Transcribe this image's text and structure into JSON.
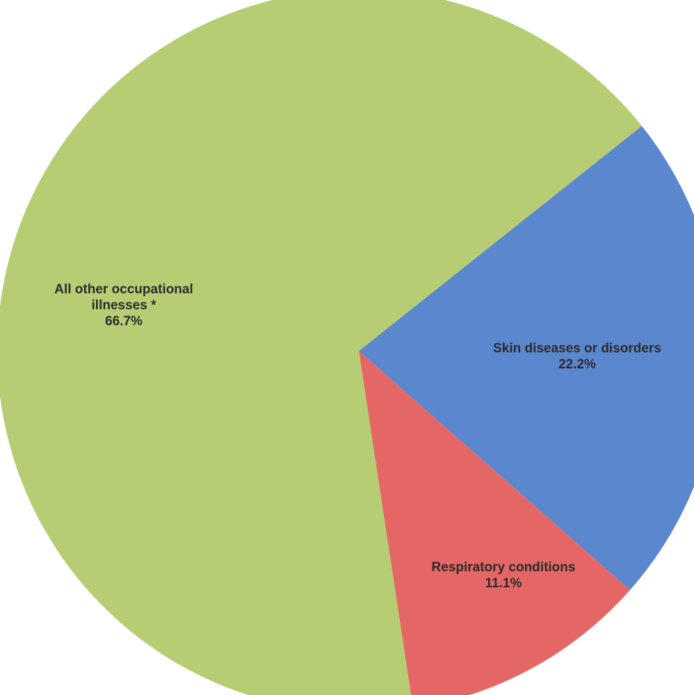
{
  "chart_data": {
    "type": "pie",
    "title": "",
    "slices": [
      {
        "label_lines": [
          "Skin diseases or disorders"
        ],
        "pct_text": "22.2%",
        "value": 22.2,
        "color": "#5b87cf"
      },
      {
        "label_lines": [
          "Respiratory conditions"
        ],
        "pct_text": "11.1%",
        "value": 11.1,
        "color": "#e46766"
      },
      {
        "label_lines": [
          "All other occupational",
          "illnesses *"
        ],
        "pct_text": "66.7%",
        "value": 66.7,
        "color": "#b7cd73"
      }
    ],
    "legend": "none"
  }
}
